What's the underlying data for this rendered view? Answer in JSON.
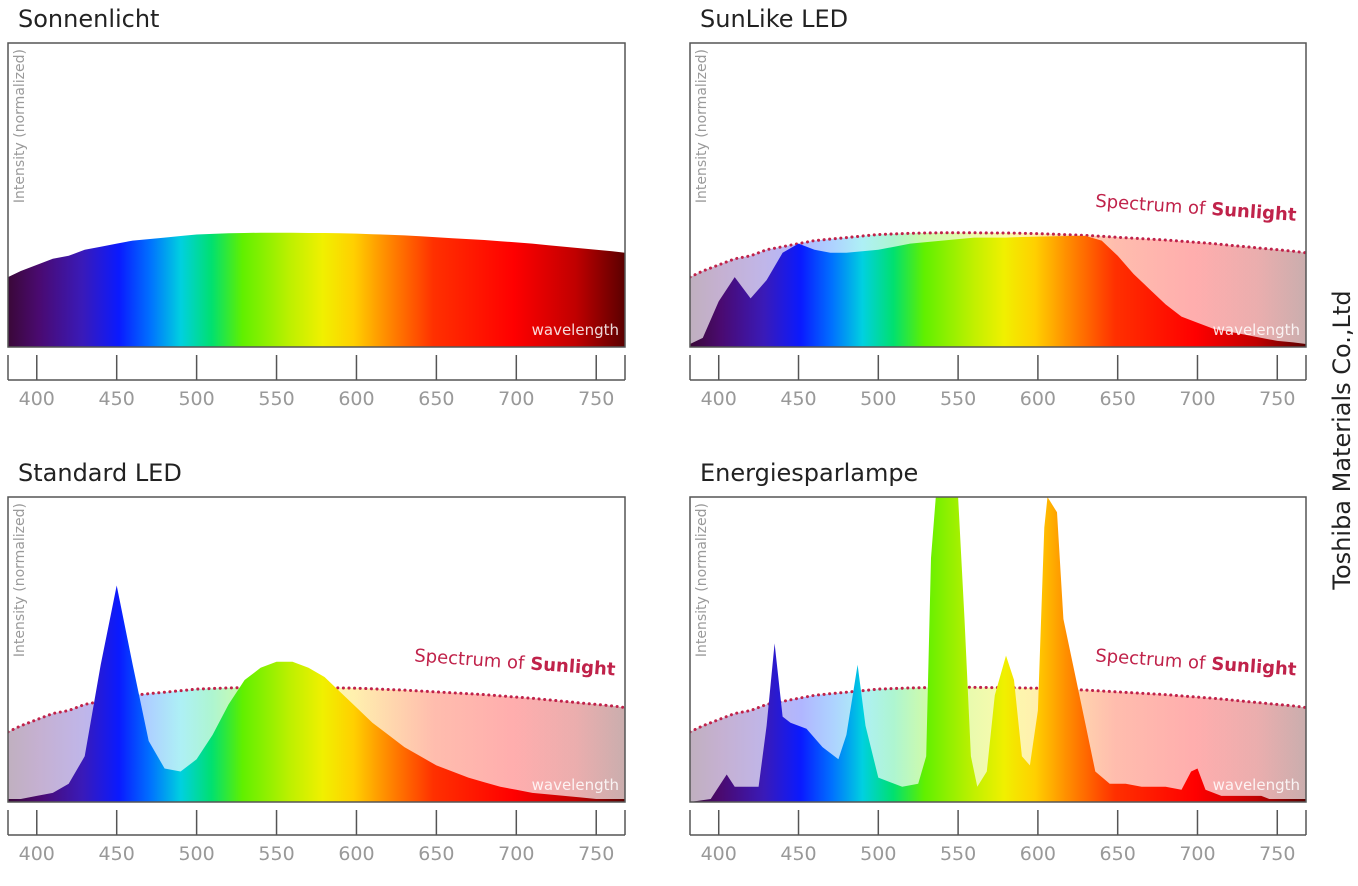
{
  "chart_data": [
    {
      "type": "area",
      "title": "Sonnenlicht",
      "ylabel": "Intensity (normalized)",
      "xlabel": "wavelength",
      "xlim": [
        382,
        768
      ],
      "xticks": [
        400,
        450,
        500,
        550,
        600,
        650,
        700,
        750
      ],
      "ylim": [
        0,
        1
      ],
      "series": [
        {
          "x": [
            382,
            390,
            400,
            410,
            420,
            430,
            440,
            450,
            460,
            470,
            480,
            490,
            500,
            510,
            520,
            530,
            540,
            550,
            560,
            570,
            580,
            590,
            600,
            610,
            620,
            630,
            640,
            650,
            660,
            670,
            680,
            690,
            700,
            710,
            720,
            730,
            740,
            750,
            760,
            768
          ],
          "values": [
            0.23,
            0.25,
            0.27,
            0.29,
            0.3,
            0.32,
            0.33,
            0.34,
            0.35,
            0.355,
            0.36,
            0.365,
            0.37,
            0.372,
            0.374,
            0.375,
            0.376,
            0.376,
            0.376,
            0.375,
            0.375,
            0.374,
            0.373,
            0.371,
            0.369,
            0.367,
            0.364,
            0.361,
            0.358,
            0.355,
            0.352,
            0.348,
            0.344,
            0.34,
            0.335,
            0.33,
            0.325,
            0.32,
            0.315,
            0.31
          ]
        }
      ]
    },
    {
      "type": "area",
      "title": "SunLike LED",
      "ylabel": "Intensity (normalized)",
      "xlabel": "wavelength",
      "xlim": [
        382,
        768
      ],
      "xticks": [
        400,
        450,
        500,
        550,
        600,
        650,
        700,
        750
      ],
      "ylim": [
        0,
        1
      ],
      "annotation": {
        "text": "Spectrum of",
        "bold": "Sunlight"
      },
      "series": [
        {
          "x": [
            382,
            390,
            400,
            410,
            420,
            430,
            440,
            450,
            460,
            470,
            480,
            490,
            500,
            510,
            520,
            530,
            540,
            550,
            560,
            570,
            580,
            590,
            600,
            610,
            620,
            630,
            640,
            650,
            660,
            670,
            680,
            690,
            700,
            710,
            720,
            730,
            740,
            750,
            760,
            768
          ],
          "values": [
            0.01,
            0.03,
            0.15,
            0.23,
            0.16,
            0.22,
            0.31,
            0.34,
            0.32,
            0.31,
            0.31,
            0.315,
            0.32,
            0.33,
            0.34,
            0.345,
            0.35,
            0.355,
            0.36,
            0.36,
            0.36,
            0.362,
            0.363,
            0.364,
            0.365,
            0.365,
            0.35,
            0.3,
            0.24,
            0.19,
            0.14,
            0.1,
            0.08,
            0.06,
            0.05,
            0.04,
            0.03,
            0.02,
            0.015,
            0.01
          ]
        },
        {
          "line_style": "dotted",
          "color": "#c0224a",
          "x": [
            382,
            390,
            400,
            410,
            420,
            430,
            440,
            450,
            460,
            470,
            480,
            490,
            500,
            510,
            520,
            530,
            540,
            550,
            560,
            570,
            580,
            590,
            600,
            610,
            620,
            630,
            640,
            650,
            660,
            670,
            680,
            690,
            700,
            710,
            720,
            730,
            740,
            750,
            760,
            768
          ],
          "values": [
            0.23,
            0.25,
            0.27,
            0.29,
            0.3,
            0.32,
            0.33,
            0.34,
            0.35,
            0.355,
            0.36,
            0.365,
            0.37,
            0.372,
            0.374,
            0.375,
            0.376,
            0.376,
            0.376,
            0.375,
            0.375,
            0.374,
            0.373,
            0.371,
            0.369,
            0.367,
            0.364,
            0.361,
            0.358,
            0.355,
            0.352,
            0.348,
            0.344,
            0.34,
            0.335,
            0.33,
            0.325,
            0.32,
            0.315,
            0.31
          ]
        }
      ]
    },
    {
      "type": "area",
      "title": "Standard LED",
      "ylabel": "Intensity (normalized)",
      "xlabel": "wavelength",
      "xlim": [
        382,
        768
      ],
      "xticks": [
        400,
        450,
        500,
        550,
        600,
        650,
        700,
        750
      ],
      "ylim": [
        0,
        1
      ],
      "annotation": {
        "text": "Spectrum of",
        "bold": "Sunlight"
      },
      "series": [
        {
          "x": [
            382,
            390,
            400,
            410,
            420,
            430,
            440,
            450,
            460,
            470,
            480,
            490,
            500,
            510,
            520,
            530,
            540,
            550,
            560,
            570,
            580,
            590,
            600,
            610,
            620,
            630,
            640,
            650,
            660,
            670,
            680,
            690,
            700,
            710,
            720,
            730,
            740,
            750,
            760,
            768
          ],
          "values": [
            0.01,
            0.01,
            0.02,
            0.03,
            0.06,
            0.15,
            0.45,
            0.71,
            0.45,
            0.2,
            0.11,
            0.1,
            0.14,
            0.22,
            0.32,
            0.4,
            0.44,
            0.46,
            0.46,
            0.44,
            0.41,
            0.36,
            0.31,
            0.26,
            0.22,
            0.18,
            0.15,
            0.12,
            0.1,
            0.08,
            0.065,
            0.05,
            0.04,
            0.03,
            0.025,
            0.02,
            0.015,
            0.01,
            0.01,
            0.01
          ]
        },
        {
          "line_style": "dotted",
          "color": "#c0224a",
          "x": [
            382,
            390,
            400,
            410,
            420,
            430,
            440,
            450,
            460,
            470,
            480,
            490,
            500,
            510,
            520,
            530,
            540,
            550,
            560,
            570,
            580,
            590,
            600,
            610,
            620,
            630,
            640,
            650,
            660,
            670,
            680,
            690,
            700,
            710,
            720,
            730,
            740,
            750,
            760,
            768
          ],
          "values": [
            0.23,
            0.25,
            0.27,
            0.29,
            0.3,
            0.32,
            0.33,
            0.34,
            0.35,
            0.355,
            0.36,
            0.365,
            0.37,
            0.372,
            0.374,
            0.375,
            0.376,
            0.376,
            0.376,
            0.375,
            0.375,
            0.374,
            0.373,
            0.371,
            0.369,
            0.367,
            0.364,
            0.361,
            0.358,
            0.355,
            0.352,
            0.348,
            0.344,
            0.34,
            0.335,
            0.33,
            0.325,
            0.32,
            0.315,
            0.31
          ]
        }
      ]
    },
    {
      "type": "area",
      "title": "Energiesparlampe",
      "ylabel": "Intensity (normalized)",
      "xlabel": "wavelength",
      "xlim": [
        382,
        768
      ],
      "xticks": [
        400,
        450,
        500,
        550,
        600,
        650,
        700,
        750
      ],
      "ylim": [
        0,
        1
      ],
      "annotation": {
        "text": "Spectrum of",
        "bold": "Sunlight"
      },
      "series": [
        {
          "x": [
            382,
            395,
            400,
            405,
            410,
            425,
            430,
            435,
            440,
            445,
            455,
            465,
            475,
            480,
            487,
            492,
            500,
            515,
            525,
            530,
            533,
            536,
            550,
            554,
            558,
            562,
            568,
            573,
            580,
            585,
            590,
            595,
            600,
            604,
            606,
            612,
            616,
            622,
            630,
            636,
            645,
            655,
            665,
            680,
            690,
            696,
            700,
            705,
            715,
            740,
            745,
            768
          ],
          "values": [
            0.0,
            0.01,
            0.05,
            0.09,
            0.05,
            0.05,
            0.25,
            0.52,
            0.28,
            0.26,
            0.24,
            0.18,
            0.14,
            0.22,
            0.45,
            0.25,
            0.08,
            0.05,
            0.06,
            0.15,
            0.8,
            1.0,
            1.0,
            0.6,
            0.15,
            0.05,
            0.1,
            0.35,
            0.48,
            0.4,
            0.15,
            0.12,
            0.3,
            0.9,
            1.0,
            0.95,
            0.6,
            0.45,
            0.25,
            0.1,
            0.06,
            0.06,
            0.05,
            0.05,
            0.04,
            0.1,
            0.11,
            0.04,
            0.02,
            0.02,
            0.01,
            0.01
          ]
        },
        {
          "line_style": "dotted",
          "color": "#c0224a",
          "x": [
            382,
            390,
            400,
            410,
            420,
            430,
            440,
            450,
            460,
            470,
            480,
            490,
            500,
            510,
            520,
            530,
            540,
            550,
            560,
            570,
            580,
            590,
            600,
            610,
            620,
            630,
            640,
            650,
            660,
            670,
            680,
            690,
            700,
            710,
            720,
            730,
            740,
            750,
            760,
            768
          ],
          "values": [
            0.23,
            0.25,
            0.27,
            0.29,
            0.3,
            0.32,
            0.33,
            0.34,
            0.35,
            0.355,
            0.36,
            0.365,
            0.37,
            0.372,
            0.374,
            0.375,
            0.376,
            0.376,
            0.376,
            0.375,
            0.375,
            0.374,
            0.373,
            0.371,
            0.369,
            0.367,
            0.364,
            0.361,
            0.358,
            0.355,
            0.352,
            0.348,
            0.344,
            0.34,
            0.335,
            0.33,
            0.325,
            0.32,
            0.315,
            0.31
          ]
        }
      ]
    }
  ],
  "credit": "Toshiba Materials Co.,Ltd"
}
